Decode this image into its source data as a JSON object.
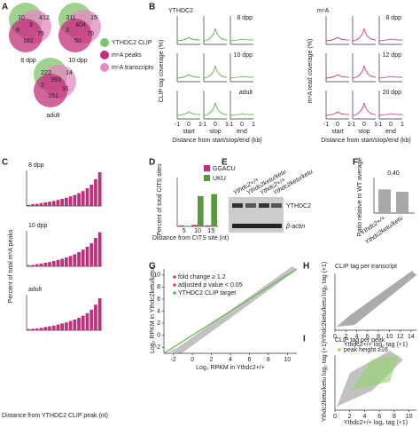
{
  "panel_labels": [
    "A",
    "B",
    "C",
    "D",
    "E",
    "F",
    "G",
    "H",
    "I"
  ],
  "A": {
    "venns": [
      {
        "label": "8 dpp",
        "counts": [
          10,
          412,
          3,
          8,
          75,
          162
        ]
      },
      {
        "label": "10 dpp",
        "counts": [
          311,
          15,
          404,
          3,
          70,
          50
        ]
      },
      {
        "label": "adult",
        "counts": [
          223,
          14,
          393,
          2,
          91,
          151
        ]
      }
    ],
    "legend": [
      {
        "name": "YTHDC2 CLIP",
        "color": "#7fc36b"
      },
      {
        "name": "m⁶A peaks",
        "color": "#c0307a"
      },
      {
        "name": "m⁶A transcripts",
        "color": "#e68ac0"
      }
    ]
  },
  "B": {
    "left_title": "YTHDC2",
    "right_title": "m⁶A",
    "left_color": "#5cb84a",
    "right_color": "#d0408a",
    "left_ylabel": "CLIP tag coverage (%)",
    "right_ylabel": "m⁶A read coverage (%)",
    "left_rows": [
      "8 dpp",
      "10 dpp",
      "adult"
    ],
    "right_rows": [
      "8 dpp",
      "12 dpp",
      "20 dpp"
    ],
    "xticks": [
      -1,
      0,
      1
    ],
    "features": [
      "start",
      "stop",
      "end"
    ],
    "xlabel": "Distance from start/stop/end (kb)"
  },
  "C": {
    "ylabel": "Percent of total m⁶A peaks",
    "xlabel": "Distance from YTHDC2 CLIP peak (nt)",
    "color": "#c0307a",
    "ylim": [
      0,
      10
    ],
    "rows": [
      {
        "label": "8 dpp",
        "values": [
          0.3,
          0.5,
          0.6,
          0.8,
          1,
          1.2,
          1.4,
          1.7,
          2,
          2.3,
          2.7,
          3.1,
          3.6,
          4.2,
          5,
          6,
          7.5,
          9.5
        ]
      },
      {
        "label": "10 dpp",
        "values": [
          0.3,
          0.4,
          0.6,
          0.8,
          1,
          1.2,
          1.5,
          1.8,
          2.1,
          2.5,
          2.9,
          3.4,
          4,
          4.7,
          5.5,
          6.5,
          8,
          9.6
        ]
      },
      {
        "label": "adult",
        "values": [
          0.3,
          0.4,
          0.5,
          0.7,
          0.9,
          1.1,
          1.3,
          1.6,
          1.9,
          2.2,
          2.6,
          3,
          3.5,
          4.1,
          4.8,
          5.8,
          7.2,
          9
        ]
      }
    ]
  },
  "D": {
    "type": "bar",
    "ylabel": "Percent of total CITS sites",
    "xlabel": "Distance from CITS site (nt)",
    "categories": [
      "5",
      "10",
      "15"
    ],
    "ylim": [
      0,
      100
    ],
    "series": [
      {
        "name": "GGACU",
        "color": "#c0307a",
        "values": [
          2,
          3,
          2
        ]
      },
      {
        "name": "UKU",
        "color": "#5a9a3c",
        "values": [
          1,
          62,
          66
        ]
      }
    ]
  },
  "E": {
    "genotypes": [
      "Ythdc2+/+",
      "Ythdc2ketu/ketu",
      "Ythdc2+/+",
      "Ythdc2ketu/ketu"
    ],
    "bands": [
      "YTHDC2",
      "β-actin"
    ]
  },
  "F": {
    "type": "bar",
    "ylabel": "Ratio relative to WT average",
    "categories": [
      "Ythdc2+/+",
      "Ythdc2ketu/ketu"
    ],
    "values": [
      1,
      0.9
    ],
    "ylim": [
      0,
      1.5
    ],
    "color": "#a8a8a8",
    "annotation": "0.40"
  },
  "G": {
    "legend": [
      "fold change ≥ 1.2",
      "adjusted p value < 0.05",
      "YTHDC2 CLIP target"
    ],
    "xlabel": "Log₂ RPKM in Ythdc2+/+",
    "ylabel": "Log₂ RPKM in Ythdc2ketu/ketu",
    "xticks": [
      -2,
      0,
      2,
      4,
      6,
      8,
      10
    ],
    "yticks": [
      -2,
      0,
      2,
      4,
      6,
      8,
      10
    ],
    "xlim": [
      -3,
      11
    ],
    "ylim": [
      -3,
      11
    ]
  },
  "H": {
    "title": "CLIP tag per transcript",
    "xlabel": "Ythdc2+/+ log₂ tag (+1)",
    "ylabel": "Ythdc2ketu/ketu log₂ tag (+1)",
    "xticks": [
      0,
      2,
      4,
      6,
      8,
      10,
      12,
      14
    ],
    "xlim": [
      0,
      15
    ]
  },
  "I": {
    "title": "CLIP tag per peak",
    "legend": "peak height ≥16",
    "xlabel": "Ythdc2+/+ log₂ tag (+1)",
    "ylabel": "Ythdc2ketu/ketu log₂ tag (+1)",
    "xticks": [
      0,
      2,
      4,
      6,
      8,
      10
    ],
    "xlim": [
      0,
      11
    ]
  }
}
